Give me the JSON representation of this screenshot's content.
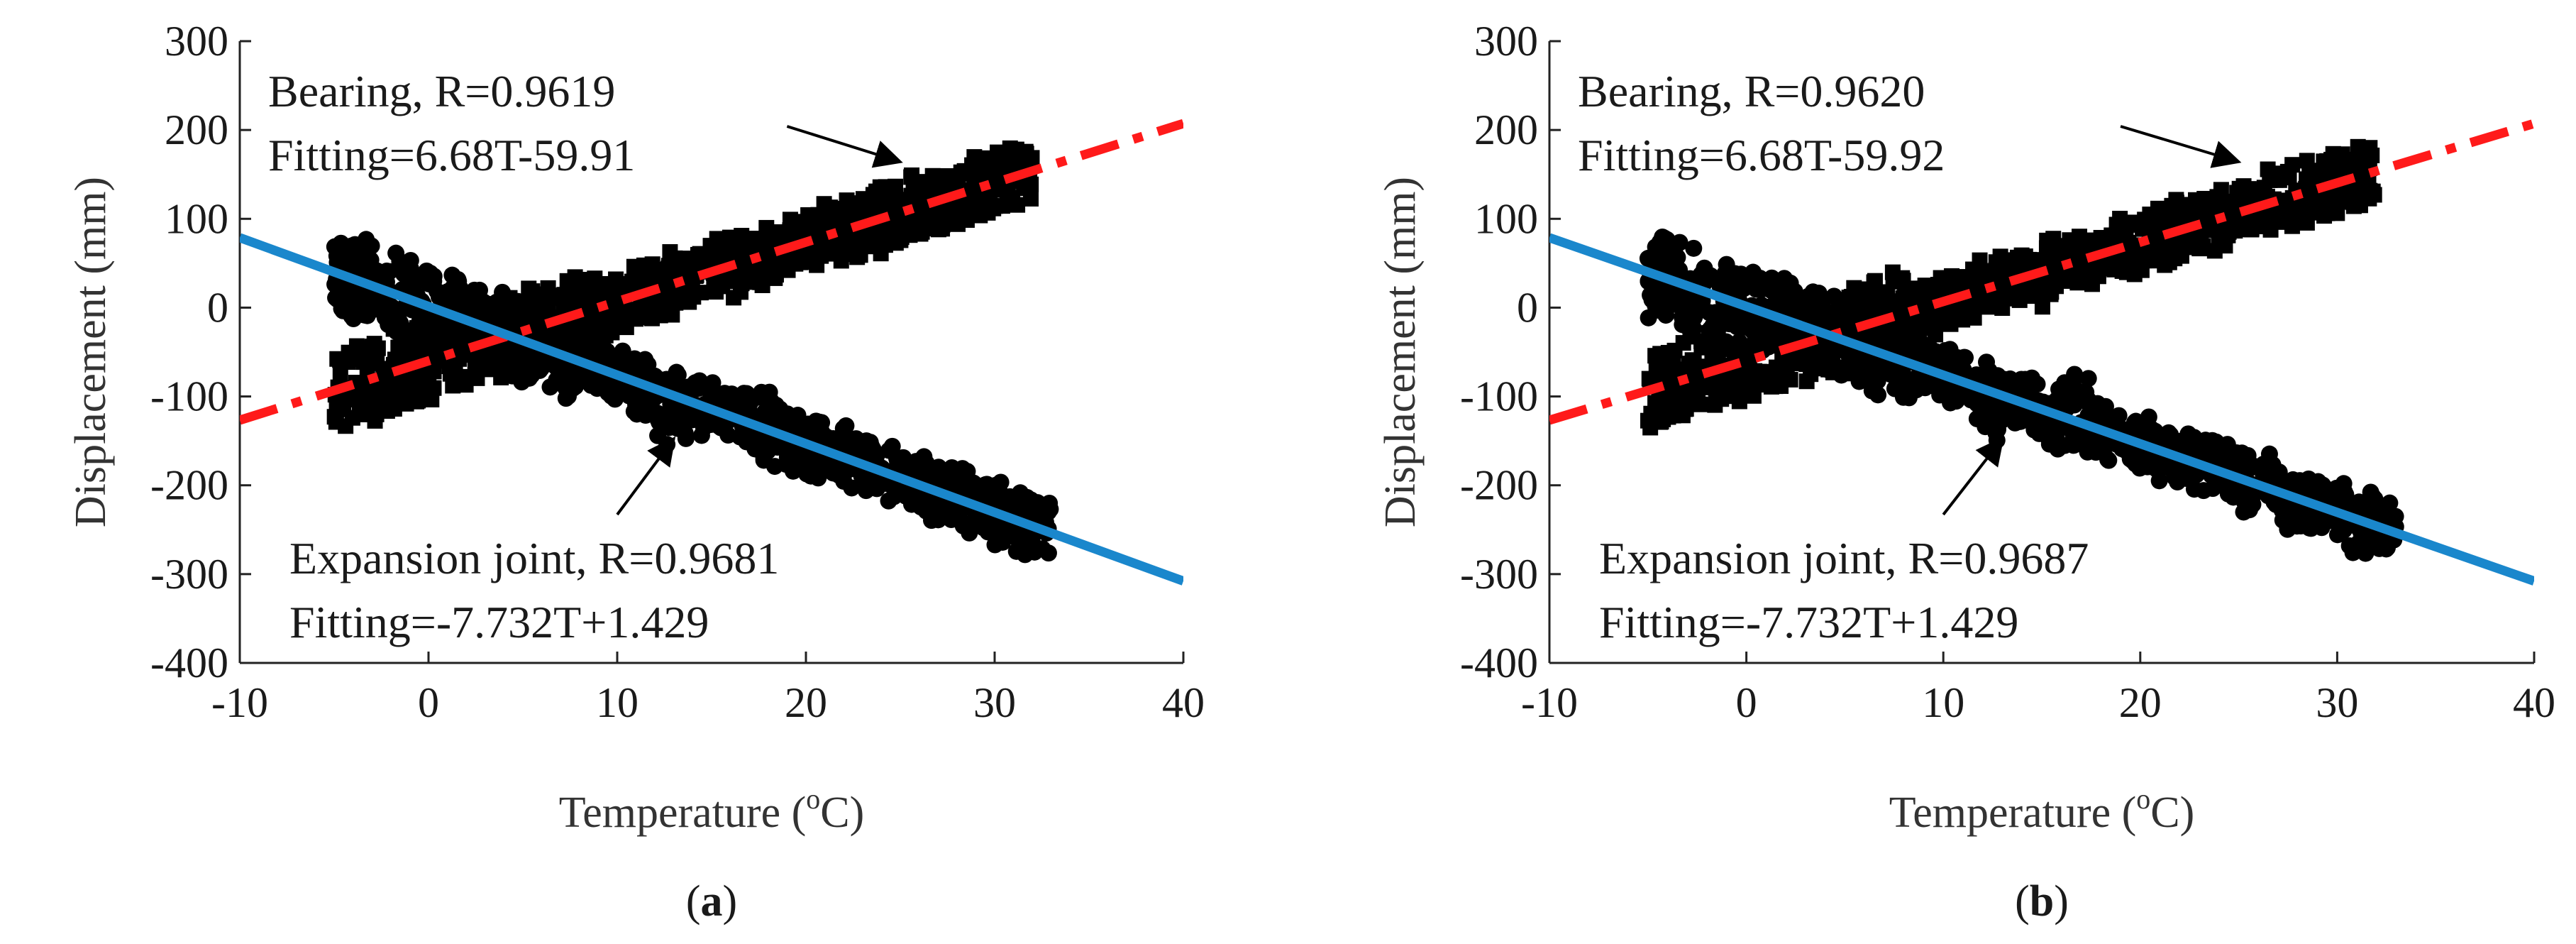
{
  "chart_data": [
    {
      "type": "scatter",
      "panel_label": "(a)",
      "panel_letter": "a",
      "xlabel": "Temperature (",
      "xlabel_sup": "o",
      "xlabel_unit": "C)",
      "ylabel": "Displacement (mm)",
      "xlim": [
        -10,
        40
      ],
      "ylim": [
        -400,
        300
      ],
      "xticks": [
        -10,
        0,
        10,
        20,
        30,
        40
      ],
      "yticks": [
        300,
        200,
        100,
        0,
        -100,
        -200,
        -300,
        -400
      ],
      "colors": {
        "data": "#000000",
        "bearing_fit": "#ff1a1a",
        "joint_fit": "#1a87cc"
      },
      "series": [
        {
          "name": "Bearing",
          "R_label": "Bearing, R=0.9619",
          "fit_label": "Fitting=6.68T-59.91",
          "fit": {
            "slope": 6.68,
            "intercept": -59.91,
            "style": "dash-dot"
          },
          "t_range": [
            -5,
            32
          ]
        },
        {
          "name": "Expansion joint",
          "R_label": "Expansion joint, R=0.9681",
          "fit_label": "Fitting=-7.732T+1.429",
          "fit": {
            "slope": -7.732,
            "intercept": 1.429,
            "style": "solid"
          },
          "t_range": [
            -5,
            33
          ]
        }
      ]
    },
    {
      "type": "scatter",
      "panel_label": "(b)",
      "panel_letter": "b",
      "xlabel": "Temperature (",
      "xlabel_sup": "o",
      "xlabel_unit": "C)",
      "ylabel": "Displacement (mm)",
      "xlim": [
        -10,
        40
      ],
      "ylim": [
        -400,
        300
      ],
      "xticks": [
        -10,
        0,
        10,
        20,
        30,
        40
      ],
      "yticks": [
        300,
        200,
        100,
        0,
        -100,
        -200,
        -300,
        -400
      ],
      "colors": {
        "data": "#000000",
        "bearing_fit": "#ff1a1a",
        "joint_fit": "#1a87cc"
      },
      "series": [
        {
          "name": "Bearing",
          "R_label": "Bearing, R=0.9620",
          "fit_label": "Fitting=6.68T-59.92",
          "fit": {
            "slope": 6.68,
            "intercept": -59.92,
            "style": "dash-dot"
          },
          "t_range": [
            -5,
            32
          ]
        },
        {
          "name": "Expansion joint",
          "R_label": "Expansion joint, R=0.9687",
          "fit_label": "Fitting=-7.732T+1.429",
          "fit": {
            "slope": -7.732,
            "intercept": 1.429,
            "style": "solid"
          },
          "t_range": [
            -5,
            33
          ]
        }
      ]
    }
  ]
}
